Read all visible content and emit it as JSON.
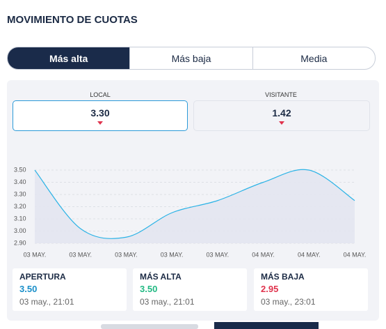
{
  "header": {
    "title": "MOVIMIENTO DE CUOTAS"
  },
  "tabs": [
    "Más alta",
    "Más baja",
    "Media"
  ],
  "odds": [
    {
      "label": "LOCAL",
      "value": "3.30"
    },
    {
      "label": "VISITANTE",
      "value": "1.42"
    }
  ],
  "chart_data": {
    "type": "line",
    "categories": [
      "03 MAY.",
      "03 MAY.",
      "03 MAY.",
      "03 MAY.",
      "03 MAY.",
      "04 MAY.",
      "04 MAY.",
      "04 MAY."
    ],
    "values": [
      3.5,
      3.02,
      2.95,
      3.15,
      3.25,
      3.4,
      3.5,
      3.25
    ],
    "color": "#2bb3e6",
    "ylim": [
      2.9,
      3.5
    ],
    "yticks": [
      {
        "value": 2.9,
        "label": "2.90"
      },
      {
        "value": 3.0,
        "label": "3.00"
      },
      {
        "value": 3.1,
        "label": "3.10"
      },
      {
        "value": 3.2,
        "label": "3.20"
      },
      {
        "value": 3.3,
        "label": "3.30"
      },
      {
        "value": 3.4,
        "label": "3.40"
      },
      {
        "value": 3.5,
        "label": "3.50"
      }
    ],
    "grid": true
  },
  "stats": [
    {
      "label": "APERTURA",
      "value": "3.50",
      "time": "03 may., 21:01",
      "color": "#1a8fc9"
    },
    {
      "label": "MÁS ALTA",
      "value": "3.50",
      "time": "03 may., 21:01",
      "color": "#22b983"
    },
    {
      "label": "MÁS BAJA",
      "value": "2.95",
      "time": "03 may., 23:01",
      "color": "#e0334d"
    }
  ]
}
